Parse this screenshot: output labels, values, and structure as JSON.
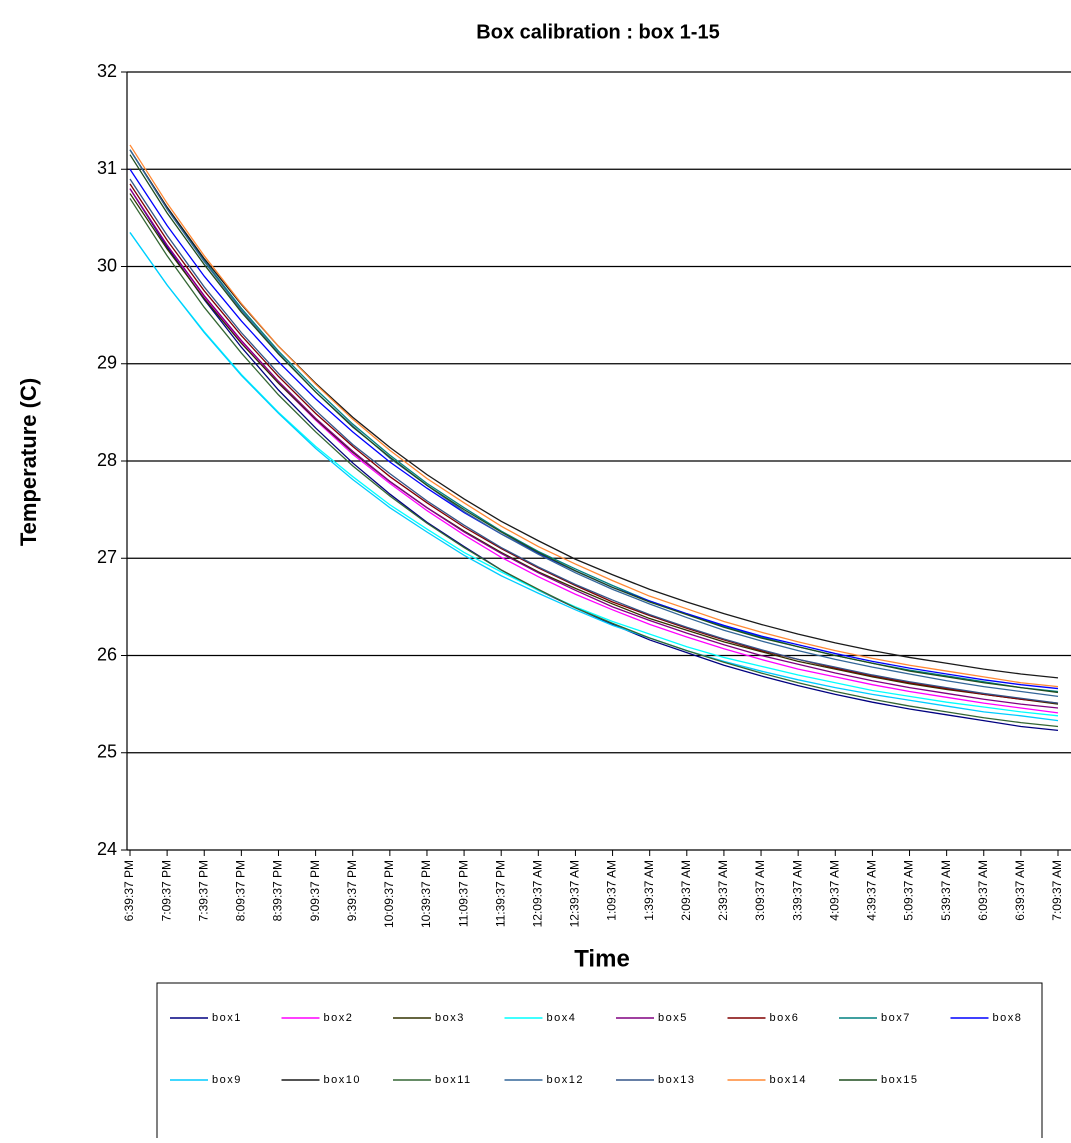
{
  "chart_data": {
    "type": "line",
    "title": "Box calibration : box 1-15",
    "y_label": "Temperature (C)",
    "x_label": "Time",
    "categories": [
      "6:39:37 PM",
      "7:09:37 PM",
      "7:39:37 PM",
      "8:09:37 PM",
      "8:39:37 PM",
      "9:09:37 PM",
      "9:39:37 PM",
      "10:09:37 PM",
      "10:39:37 PM",
      "11:09:37 PM",
      "11:39:37 PM",
      "12:09:37 AM",
      "12:39:37 AM",
      "1:09:37 AM",
      "1:39:37 AM",
      "2:09:37 AM",
      "2:39:37 AM",
      "3:09:37 AM",
      "3:39:37 AM",
      "4:09:37 AM",
      "4:39:37 AM",
      "5:09:37 AM",
      "5:39:37 AM",
      "6:09:37 AM",
      "6:39:37 AM",
      "7:09:37 AM"
    ],
    "ylim": [
      24,
      32
    ],
    "yticks": [
      24,
      25,
      26,
      27,
      28,
      29,
      30,
      31,
      32
    ],
    "grid": true,
    "legend": "bottom",
    "series": [
      {
        "name": "box1",
        "color": "#000080",
        "values": [
          30.8,
          30.2,
          29.66,
          29.17,
          28.73,
          28.34,
          27.98,
          27.66,
          27.37,
          27.12,
          26.88,
          26.67,
          26.49,
          26.32,
          26.16,
          26.03,
          25.9,
          25.79,
          25.69,
          25.6,
          25.52,
          25.45,
          25.39,
          25.33,
          25.27,
          25.23
        ]
      },
      {
        "name": "box2",
        "color": "#ff00ff",
        "values": [
          30.8,
          30.22,
          29.69,
          29.22,
          28.8,
          28.42,
          28.07,
          27.77,
          27.49,
          27.24,
          27.01,
          26.81,
          26.63,
          26.47,
          26.32,
          26.19,
          26.07,
          25.96,
          25.86,
          25.78,
          25.7,
          25.63,
          25.57,
          25.51,
          25.46,
          25.41
        ]
      },
      {
        "name": "box3",
        "color": "#333300",
        "values": [
          30.75,
          30.18,
          29.67,
          29.21,
          28.8,
          28.43,
          28.09,
          27.79,
          27.52,
          27.28,
          27.06,
          26.86,
          26.69,
          26.53,
          26.38,
          26.26,
          26.14,
          26.04,
          25.94,
          25.86,
          25.78,
          25.71,
          25.65,
          25.6,
          25.55,
          25.5
        ]
      },
      {
        "name": "box4",
        "color": "#00ffff",
        "values": [
          30.35,
          29.81,
          29.33,
          28.89,
          28.5,
          28.15,
          27.84,
          27.55,
          27.3,
          27.06,
          26.86,
          26.67,
          26.5,
          26.35,
          26.22,
          26.09,
          25.98,
          25.89,
          25.8,
          25.72,
          25.64,
          25.58,
          25.52,
          25.47,
          25.42,
          25.38
        ]
      },
      {
        "name": "box5",
        "color": "#800080",
        "values": [
          30.8,
          30.22,
          29.7,
          29.24,
          28.82,
          28.44,
          28.1,
          27.79,
          27.52,
          27.27,
          27.05,
          26.85,
          26.67,
          26.5,
          26.36,
          26.23,
          26.11,
          26.0,
          25.91,
          25.82,
          25.74,
          25.67,
          25.61,
          25.55,
          25.5,
          25.46
        ]
      },
      {
        "name": "box6",
        "color": "#800000",
        "values": [
          30.85,
          30.27,
          29.75,
          29.29,
          28.87,
          28.49,
          28.15,
          27.84,
          27.57,
          27.32,
          27.1,
          26.9,
          26.72,
          26.55,
          26.41,
          26.28,
          26.16,
          26.05,
          25.96,
          25.87,
          25.79,
          25.72,
          25.66,
          25.6,
          25.55,
          25.51
        ]
      },
      {
        "name": "box7",
        "color": "#008080",
        "values": [
          31.2,
          30.6,
          30.06,
          29.57,
          29.13,
          28.74,
          28.38,
          28.06,
          27.77,
          27.52,
          27.28,
          27.07,
          26.89,
          26.72,
          26.56,
          26.43,
          26.3,
          26.19,
          26.09,
          26.0,
          25.92,
          25.85,
          25.79,
          25.73,
          25.67,
          25.63
        ]
      },
      {
        "name": "box8",
        "color": "#0000ff",
        "values": [
          31.0,
          30.42,
          29.9,
          29.44,
          29.02,
          28.64,
          28.3,
          27.99,
          27.72,
          27.47,
          27.25,
          27.05,
          26.87,
          26.7,
          26.56,
          26.43,
          26.31,
          26.2,
          26.11,
          26.02,
          25.94,
          25.87,
          25.81,
          25.75,
          25.7,
          25.66
        ]
      },
      {
        "name": "box9",
        "color": "#00ccff",
        "values": [
          30.35,
          29.81,
          29.32,
          28.88,
          28.49,
          28.13,
          27.81,
          27.52,
          27.27,
          27.03,
          26.82,
          26.64,
          26.47,
          26.31,
          26.18,
          26.05,
          25.94,
          25.84,
          25.75,
          25.67,
          25.6,
          25.54,
          25.48,
          25.42,
          25.38,
          25.33
        ]
      },
      {
        "name": "box10",
        "color": "#1a1a1a",
        "values": [
          31.2,
          30.61,
          30.08,
          29.61,
          29.18,
          28.8,
          28.45,
          28.14,
          27.86,
          27.61,
          27.38,
          27.18,
          26.99,
          26.83,
          26.68,
          26.55,
          26.43,
          26.32,
          26.22,
          26.13,
          26.05,
          25.98,
          25.92,
          25.86,
          25.81,
          25.77
        ]
      },
      {
        "name": "box11",
        "color": "#336633",
        "values": [
          30.7,
          30.11,
          29.58,
          29.11,
          28.68,
          28.3,
          27.95,
          27.64,
          27.36,
          27.11,
          26.88,
          26.68,
          26.49,
          26.33,
          26.18,
          26.05,
          25.93,
          25.82,
          25.72,
          25.63,
          25.55,
          25.48,
          25.42,
          25.36,
          25.31,
          25.27
        ]
      },
      {
        "name": "box12",
        "color": "#336699",
        "values": [
          31.2,
          30.59,
          30.05,
          29.55,
          29.11,
          28.71,
          28.36,
          28.03,
          27.75,
          27.48,
          27.25,
          27.04,
          26.85,
          26.68,
          26.53,
          26.39,
          26.26,
          26.15,
          26.05,
          25.96,
          25.88,
          25.81,
          25.74,
          25.68,
          25.63,
          25.58
        ]
      },
      {
        "name": "box13",
        "color": "#335588",
        "values": [
          30.9,
          30.32,
          29.79,
          29.32,
          28.9,
          28.52,
          28.17,
          27.87,
          27.59,
          27.34,
          27.11,
          26.91,
          26.73,
          26.57,
          26.42,
          26.29,
          26.17,
          26.06,
          25.96,
          25.88,
          25.8,
          25.73,
          25.67,
          25.61,
          25.56,
          25.51
        ]
      },
      {
        "name": "box14",
        "color": "#ff8833",
        "values": [
          31.25,
          30.65,
          30.11,
          29.62,
          29.18,
          28.79,
          28.43,
          28.11,
          27.82,
          27.57,
          27.33,
          27.12,
          26.94,
          26.77,
          26.61,
          26.48,
          26.35,
          26.24,
          26.14,
          26.05,
          25.97,
          25.9,
          25.84,
          25.78,
          25.72,
          25.68
        ]
      },
      {
        "name": "box15",
        "color": "#1f4d1f",
        "values": [
          31.15,
          30.55,
          30.02,
          29.53,
          29.1,
          28.71,
          28.35,
          28.04,
          27.75,
          27.5,
          27.27,
          27.06,
          26.87,
          26.7,
          26.55,
          26.42,
          26.29,
          26.18,
          26.09,
          26.0,
          25.92,
          25.84,
          25.78,
          25.72,
          25.67,
          25.62
        ]
      }
    ]
  }
}
